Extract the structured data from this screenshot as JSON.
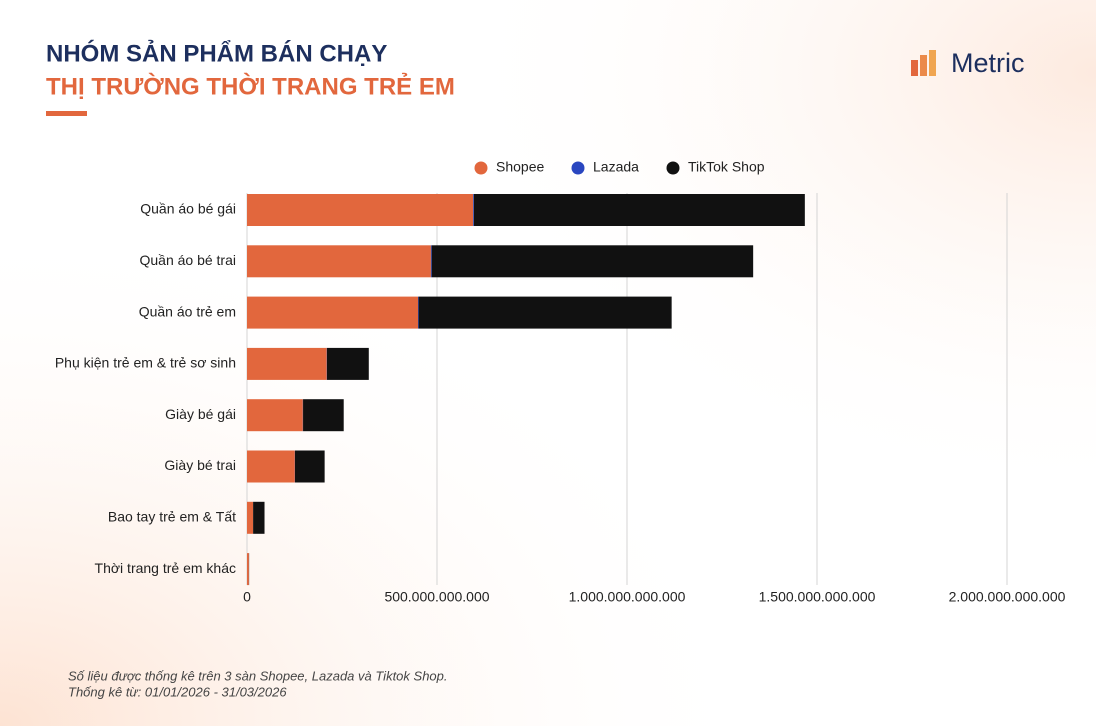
{
  "chart_data": {
    "type": "hbar_stacked",
    "title": "NHÓM SẢN PHẨM BÁN CHẠY",
    "subtitle": "THỊ TRƯỜNG THỜI TRANG TRẺ EM",
    "categories": [
      "Quần áo bé gái",
      "Quần áo bé trai",
      "Quần áo trẻ em",
      "Phụ kiện trẻ em & trẻ sơ sinh",
      "Giày bé gái",
      "Giày bé trai",
      "Bao tay trẻ em & Tất",
      "Thời trang trẻ em khác"
    ],
    "series": [
      {
        "name": "Shopee",
        "color": "#e2673d",
        "values": [
          595000000000,
          484000000000,
          450000000000,
          210000000000,
          147000000000,
          126000000000,
          16000000000,
          5000000000
        ]
      },
      {
        "name": "Lazada",
        "color": "#2a46c0",
        "values": [
          2000000000,
          2000000000,
          1500000000,
          500000000,
          500000000,
          300000000,
          100000000,
          50000000
        ]
      },
      {
        "name": "TikTok Shop",
        "color": "#111111",
        "values": [
          871000000000,
          846000000000,
          666000000000,
          110000000000,
          107000000000,
          78000000000,
          30000000000,
          500000000
        ]
      }
    ],
    "xlim": [
      0,
      2000000000000
    ],
    "xticks": [
      0,
      {
        "value": 500000000000,
        "label": "500.000.000.000"
      },
      {
        "value": 1000000000000,
        "label": "1.000.000.000.000"
      },
      {
        "value": 1500000000000,
        "label": "1.500.000.000.000"
      },
      {
        "value": 2000000000000,
        "label": "2.000.000.000.000"
      }
    ],
    "grid": true,
    "legend": "top"
  },
  "brand": "Metric",
  "notes": [
    "Số liệu được thống kê trên 3 sàn Shopee, Lazada và Tiktok Shop.",
    "Thống kê từ: 01/01/2026 - 31/03/2026"
  ]
}
